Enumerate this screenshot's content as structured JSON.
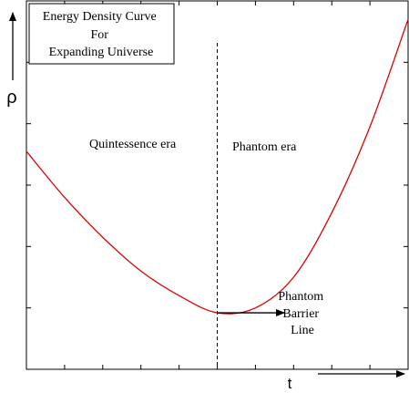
{
  "chart_data": {
    "type": "line",
    "title_lines": [
      "Energy Density Curve",
      "For",
      "Expanding Universe"
    ],
    "xlabel": "t",
    "ylabel": "ρ",
    "xlim": [
      0,
      10
    ],
    "ylim": [
      0,
      6
    ],
    "grid": false,
    "series": [
      {
        "color": "#e00000",
        "x": [
          0,
          1,
          2,
          3,
          4,
          5,
          6,
          7,
          8,
          9,
          10
        ],
        "y": [
          3.55,
          2.8,
          2.15,
          1.6,
          1.2,
          0.92,
          1.0,
          1.5,
          2.55,
          3.95,
          5.7
        ]
      }
    ],
    "divider_x": 5,
    "annotations": {
      "left_region": "Quintessence era",
      "right_region": "Phantom era",
      "barrier_lines": [
        "Phantom",
        "Barrier",
        "Line"
      ]
    },
    "x_tick_count": 10,
    "y_tick_count": 6
  }
}
